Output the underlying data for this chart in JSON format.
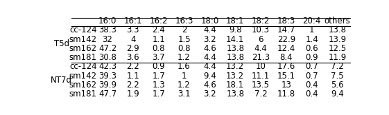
{
  "col_headers": [
    "16:0",
    "16:1",
    "16:2",
    "16:3",
    "18:0",
    "18:1",
    "18:2",
    "18:3",
    "20:4",
    "others"
  ],
  "row_group_labels": [
    "T5d",
    "NT7d"
  ],
  "row_sub_labels": [
    "cc-124",
    "sm142",
    "sm162",
    "sm181"
  ],
  "group_rows": [
    [
      [
        38.3,
        3.3,
        2.4,
        2,
        4.4,
        9.8,
        10.3,
        14.7,
        1,
        13.8
      ],
      [
        32,
        4,
        1.1,
        1.5,
        3.2,
        14.1,
        6,
        22.9,
        1.4,
        13.9
      ],
      [
        47.2,
        2.9,
        0.8,
        0.8,
        4.6,
        13.8,
        4.4,
        12.4,
        0.6,
        12.5
      ],
      [
        30.8,
        3.6,
        3.7,
        1.2,
        4.4,
        13.8,
        21.3,
        8.4,
        0.9,
        11.9
      ]
    ],
    [
      [
        42.3,
        2.2,
        0.9,
        1.6,
        4.4,
        13.2,
        10,
        17.6,
        0.7,
        7.2
      ],
      [
        39.3,
        1.1,
        1.7,
        1,
        9.4,
        13.2,
        11.1,
        15.1,
        0.7,
        7.5
      ],
      [
        39.9,
        2.2,
        1.3,
        1.2,
        4.6,
        18.1,
        13.5,
        13,
        0.4,
        5.6
      ],
      [
        47.7,
        1.9,
        1.7,
        3.1,
        3.2,
        13.8,
        7.2,
        11.8,
        0.4,
        9.4
      ]
    ]
  ],
  "bg_color": "#ffffff",
  "text_color": "#000000",
  "line_color": "#000000",
  "font_size": 8.5
}
